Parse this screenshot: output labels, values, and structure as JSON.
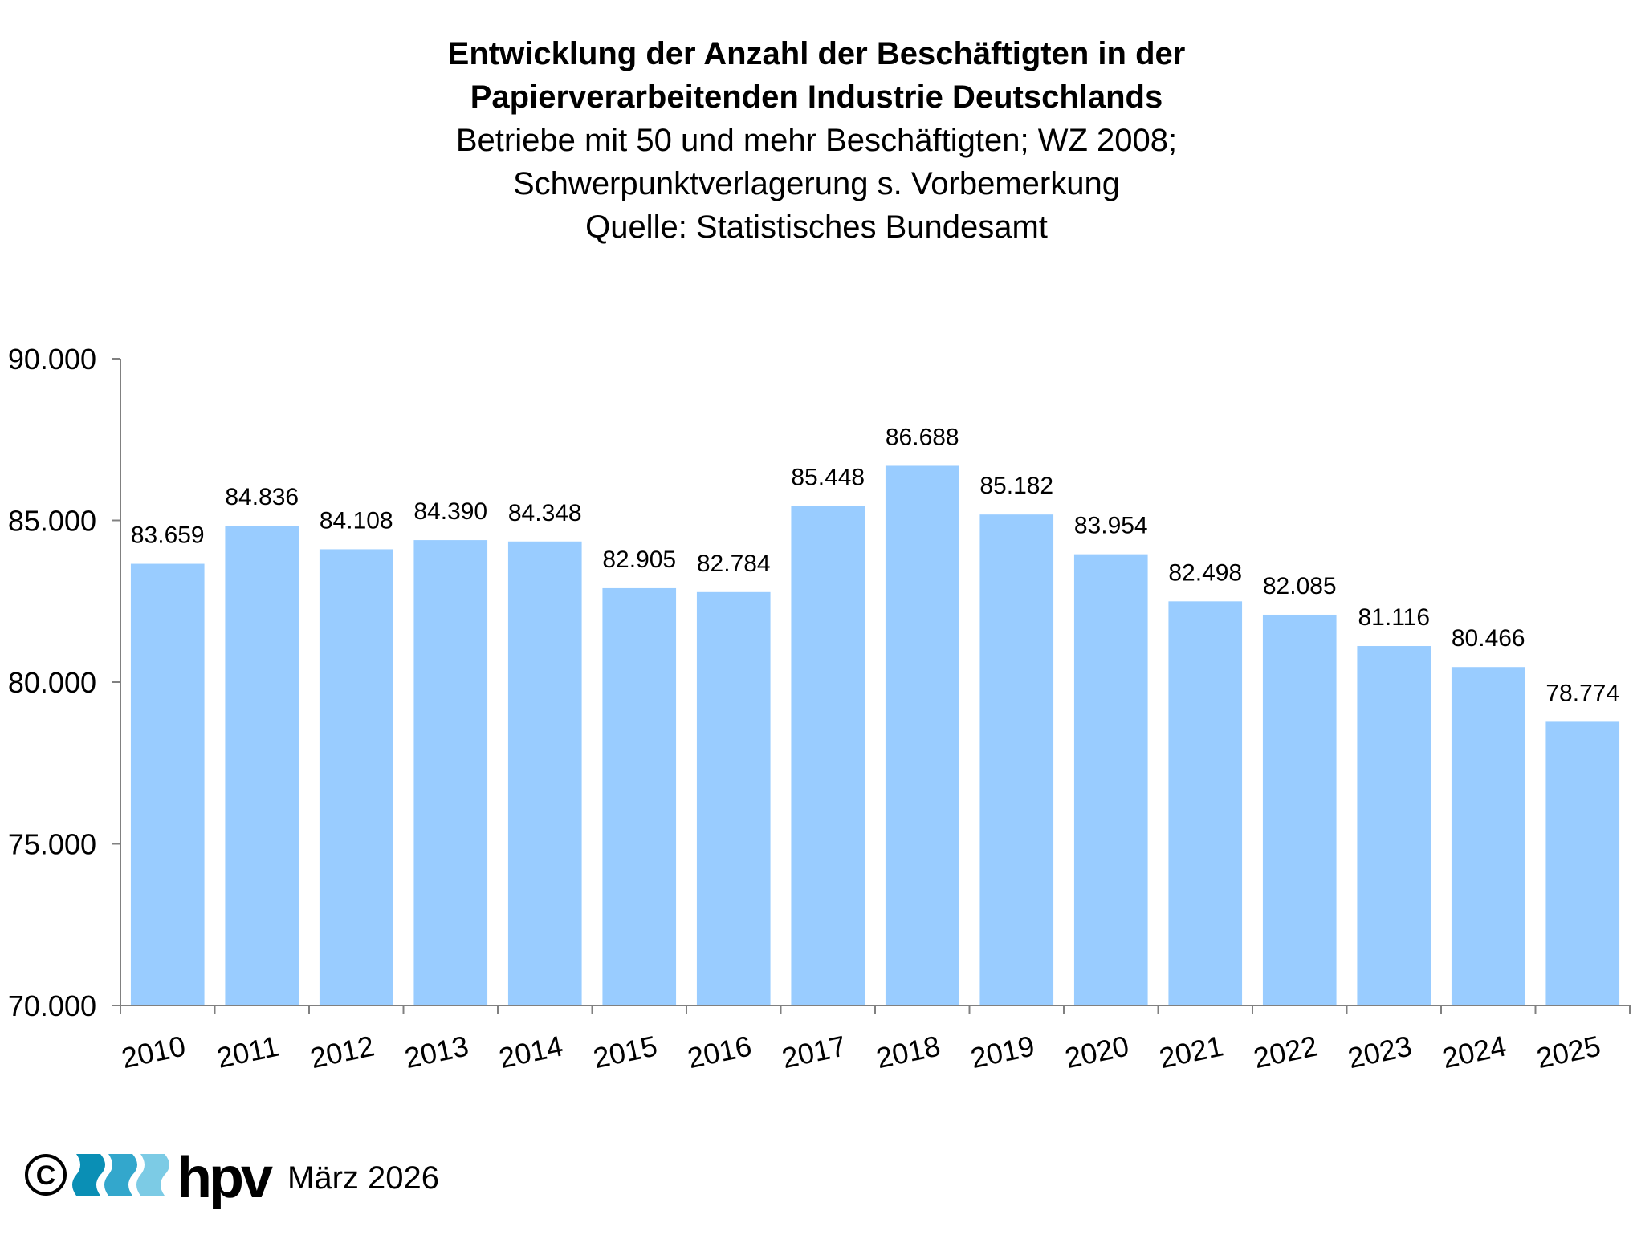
{
  "title_lines": [
    "Entwicklung der Anzahl der Beschäftigten in der",
    "Papierverarbeitenden Industrie Deutschlands"
  ],
  "subtitle_lines": [
    "Betriebe mit 50 und mehr Beschäftigten; WZ 2008;",
    "Schwerpunktverlagerung s. Vorbemerkung",
    "Quelle: Statistisches Bundesamt"
  ],
  "chart_data": {
    "type": "bar",
    "categories": [
      "2010",
      "2011",
      "2012",
      "2013",
      "2014",
      "2015",
      "2016",
      "2017",
      "2018",
      "2019",
      "2020",
      "2021",
      "2022",
      "2023",
      "2024",
      "2025"
    ],
    "values": [
      83659,
      84836,
      84108,
      84390,
      84348,
      82905,
      82784,
      85448,
      86688,
      85182,
      83954,
      82498,
      82085,
      81116,
      80466,
      78774
    ],
    "value_labels": [
      "83.659",
      "84.836",
      "84.108",
      "84.390",
      "84.348",
      "82.905",
      "82.784",
      "85.448",
      "86.688",
      "85.182",
      "83.954",
      "82.498",
      "82.085",
      "81.116",
      "80.466",
      "78.774"
    ],
    "y_ticks": [
      70000,
      75000,
      80000,
      85000,
      90000
    ],
    "y_tick_labels": [
      "70.000",
      "75.000",
      "80.000",
      "85.000",
      "90.000"
    ],
    "ylim": [
      70000,
      90000
    ],
    "bar_color": "#99ccff",
    "grid": false,
    "legend": "none"
  },
  "footer": {
    "copyright_symbol": "©",
    "logo_text": "hpv",
    "date": "März 2026",
    "logo_colors": [
      "#0a8fb5",
      "#33a7cc",
      "#7ccbe5"
    ]
  }
}
